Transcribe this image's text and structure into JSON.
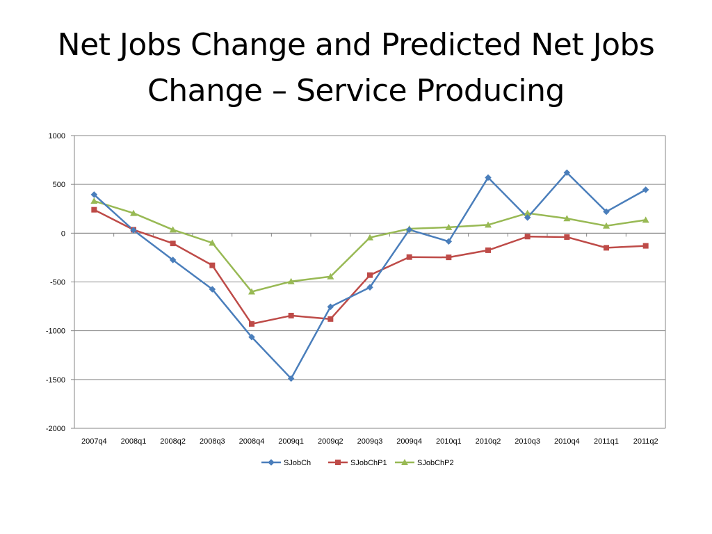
{
  "slide": {
    "title": "Net Jobs Change and Predicted Net Jobs Change – Service Producing"
  },
  "chart_data": {
    "type": "line",
    "title": "",
    "xlabel": "",
    "ylabel": "",
    "categories": [
      "2007q4",
      "2008q1",
      "2008q2",
      "2008q3",
      "2008q4",
      "2009q1",
      "2009q2",
      "2009q3",
      "2009q4",
      "2010q1",
      "2010q2",
      "2010q3",
      "2010q4",
      "2011q1",
      "2011q2"
    ],
    "ylim": [
      -2000,
      1000
    ],
    "yticks": [
      1000,
      500,
      0,
      -500,
      -1000,
      -1500,
      -2000
    ],
    "grid": true,
    "legend_position": "bottom",
    "series": [
      {
        "name": "SJobCh",
        "color": "#4a7ebb",
        "marker": "diamond",
        "values": [
          395,
          30,
          -275,
          -575,
          -1065,
          -1490,
          -755,
          -555,
          35,
          -85,
          570,
          160,
          620,
          220,
          445
        ]
      },
      {
        "name": "SJobChP1",
        "color": "#be4b48",
        "marker": "square",
        "values": [
          240,
          35,
          -105,
          -330,
          -930,
          -845,
          -880,
          -430,
          -245,
          -248,
          -175,
          -35,
          -40,
          -150,
          -130
        ]
      },
      {
        "name": "SJobChP2",
        "color": "#98b954",
        "marker": "triangle",
        "values": [
          330,
          205,
          35,
          -100,
          -600,
          -495,
          -445,
          -45,
          45,
          60,
          85,
          205,
          150,
          75,
          135
        ]
      }
    ]
  }
}
